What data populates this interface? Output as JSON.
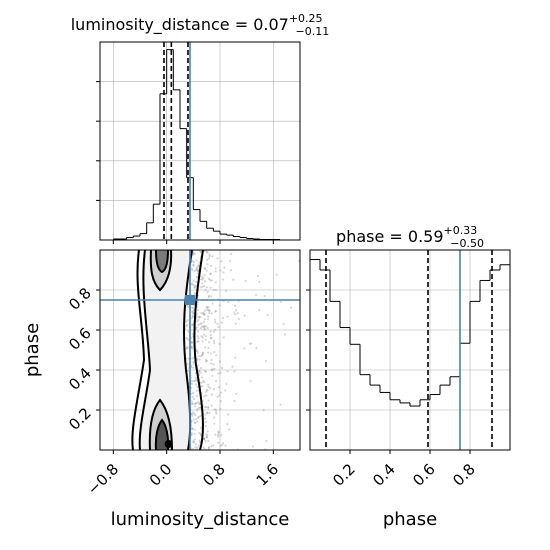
{
  "chart_data": [
    {
      "type": "histogram",
      "panel": "luminosity_distance marginal",
      "title": "luminosity_distance = 0.07",
      "title_value": "0.07",
      "title_err_plus": "+0.25",
      "title_err_minus": "−0.11",
      "xlim": [
        -1.0,
        2.0
      ],
      "bin_edges": [
        -0.8,
        -0.7,
        -0.6,
        -0.5,
        -0.4,
        -0.3,
        -0.2,
        -0.1,
        0.0,
        0.1,
        0.2,
        0.3,
        0.4,
        0.5,
        0.6,
        0.7,
        0.8,
        0.9,
        1.0,
        1.1,
        1.2,
        1.3,
        1.4,
        1.5,
        1.6,
        1.7
      ],
      "counts": [
        2,
        2,
        5,
        8,
        13,
        35,
        73,
        298,
        388,
        306,
        227,
        127,
        62,
        38,
        24,
        18,
        12,
        10,
        7,
        5,
        3,
        2,
        1,
        1,
        1
      ],
      "quantiles": [
        -0.04,
        0.07,
        0.32
      ],
      "truth": 0.35,
      "grid": true
    },
    {
      "type": "scatter",
      "panel": "2D density: luminosity_distance vs phase",
      "xlim": [
        -1.0,
        2.0
      ],
      "ylim": [
        0.0,
        1.0
      ],
      "x_ticks": [
        "−0.8",
        "0.0",
        "0.8",
        "1.6"
      ],
      "y_ticks": [
        "0.2",
        "0.4",
        "0.6",
        "0.8"
      ],
      "xlabel": "luminosity_distance",
      "ylabel": "phase",
      "truth": {
        "x": 0.35,
        "y": 0.75
      },
      "contour_levels": [
        "0.5σ",
        "1.0σ",
        "1.5σ",
        "2.0σ"
      ],
      "grid": true
    },
    {
      "type": "histogram",
      "panel": "phase marginal",
      "title": "phase = 0.59",
      "title_value": "0.59",
      "title_err_plus": "+0.33",
      "title_err_minus": "−0.50",
      "xlim": [
        0.0,
        1.0
      ],
      "bin_edges": [
        0.0,
        0.05,
        0.1,
        0.15,
        0.2,
        0.25,
        0.3,
        0.35,
        0.4,
        0.45,
        0.5,
        0.55,
        0.6,
        0.65,
        0.7,
        0.75,
        0.8,
        0.85,
        0.9,
        0.95,
        1.0
      ],
      "counts": [
        182,
        172,
        142,
        117,
        101,
        72,
        62,
        55,
        48,
        45,
        42,
        48,
        53,
        62,
        70,
        102,
        142,
        162,
        172,
        177
      ],
      "quantiles": [
        0.08,
        0.59,
        0.91
      ],
      "truth": 0.75,
      "x_ticks": [
        "0.2",
        "0.4",
        "0.6",
        "0.8"
      ],
      "xlabel": "phase",
      "grid": true
    }
  ],
  "colors": {
    "truth": "#4682b4",
    "hist": "#000000",
    "grid": "#b0b0b0",
    "scatter": "#888888"
  }
}
